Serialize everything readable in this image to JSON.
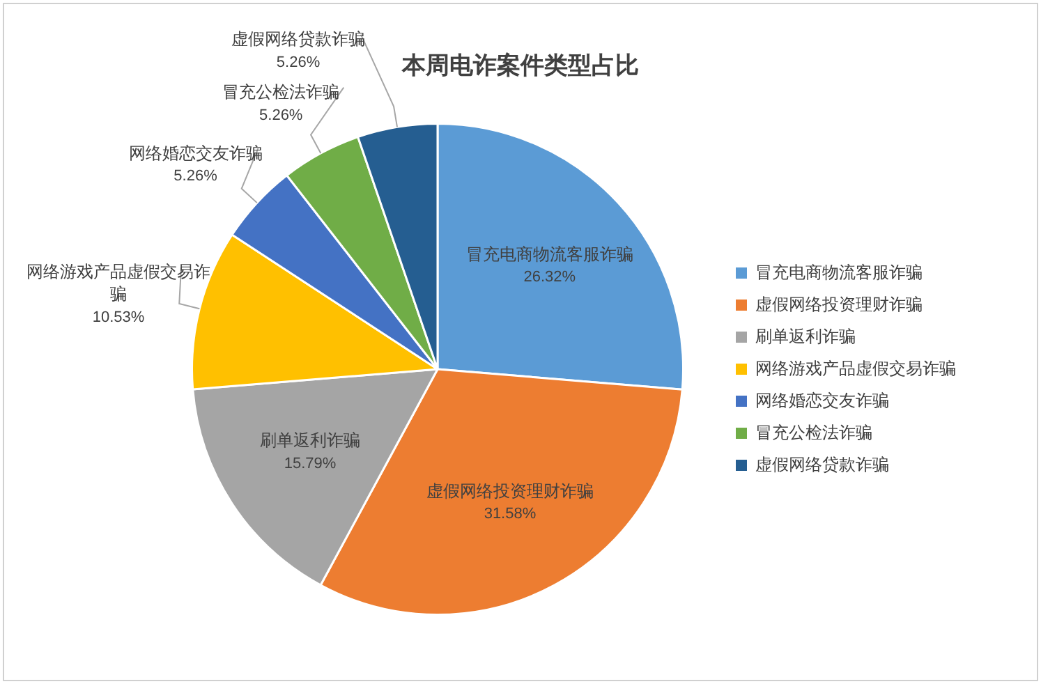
{
  "chart_data": {
    "type": "pie",
    "title": "本周电诈案件类型占比",
    "categories": [
      "冒充电商物流客服诈骗",
      "虚假网络投资理财诈骗",
      "刷单返利诈骗",
      "网络游戏产品虚假交易诈骗",
      "网络婚恋交友诈骗",
      "冒充公检法诈骗",
      "虚假网络贷款诈骗"
    ],
    "values": [
      26.32,
      31.58,
      15.79,
      10.53,
      5.26,
      5.26,
      5.26
    ],
    "colors": [
      "#5b9bd5",
      "#ed7d31",
      "#a5a5a5",
      "#ffc000",
      "#4472c4",
      "#70ad47",
      "#255e91"
    ],
    "value_labels": [
      "26.32%",
      "31.58%",
      "15.79%",
      "10.53%",
      "5.26%",
      "5.26%",
      "5.26%"
    ],
    "legend": "right"
  }
}
